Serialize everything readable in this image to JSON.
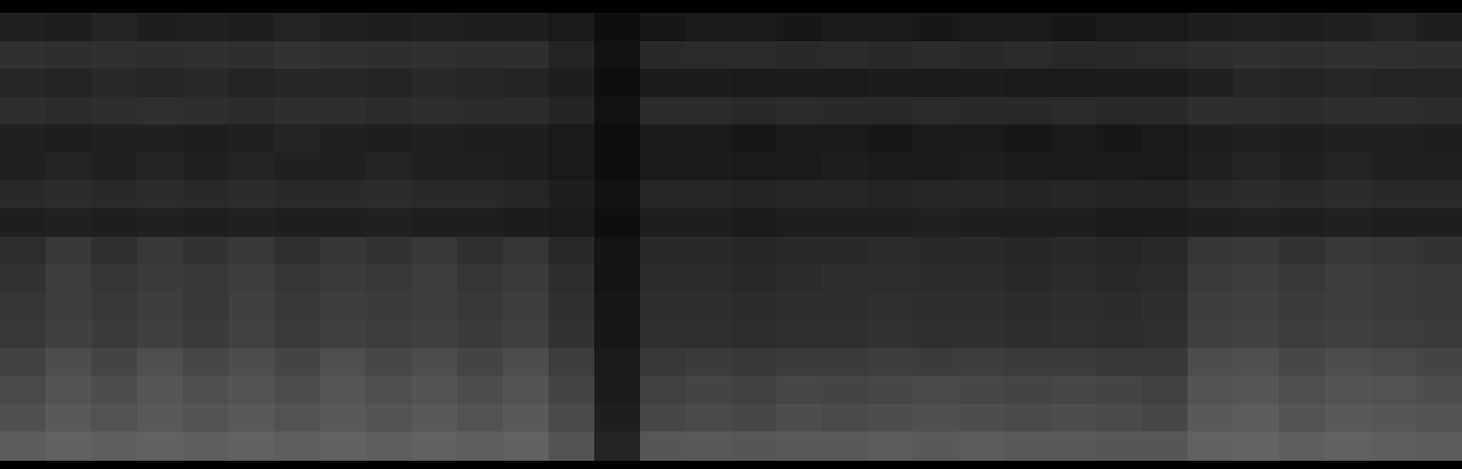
{
  "chart_data": {
    "type": "heatmap",
    "tick_labels": false,
    "grid": false,
    "zlim": [
      0,
      100
    ],
    "cells": [
      [
        13,
        12,
        14,
        12,
        13,
        12,
        14,
        13,
        12,
        13,
        12,
        12,
        10,
        6,
        9,
        10,
        10,
        9,
        10,
        10,
        9,
        10,
        10,
        9,
        10,
        10,
        12,
        13,
        12,
        13,
        14,
        12
      ],
      [
        19,
        18,
        19,
        18,
        19,
        18,
        20,
        19,
        18,
        19,
        18,
        18,
        14,
        7,
        16,
        17,
        17,
        16,
        17,
        16,
        17,
        16,
        17,
        16,
        16,
        17,
        18,
        19,
        18,
        19,
        19,
        18
      ],
      [
        15,
        14,
        16,
        15,
        16,
        14,
        15,
        15,
        14,
        16,
        15,
        14,
        12,
        6,
        11,
        11,
        10,
        11,
        10,
        11,
        10,
        11,
        10,
        10,
        11,
        11,
        13,
        15,
        14,
        15,
        14,
        14
      ],
      [
        18,
        17,
        18,
        19,
        18,
        17,
        18,
        18,
        17,
        18,
        17,
        17,
        14,
        7,
        17,
        17,
        16,
        17,
        16,
        16,
        17,
        16,
        16,
        17,
        16,
        16,
        18,
        18,
        17,
        18,
        18,
        17
      ],
      [
        13,
        12,
        13,
        13,
        12,
        13,
        14,
        13,
        12,
        13,
        12,
        12,
        10,
        6,
        10,
        10,
        9,
        10,
        10,
        9,
        10,
        10,
        9,
        10,
        9,
        10,
        12,
        13,
        12,
        13,
        13,
        12
      ],
      [
        13,
        14,
        13,
        14,
        13,
        14,
        13,
        13,
        14,
        13,
        13,
        12,
        10,
        6,
        11,
        11,
        10,
        11,
        12,
        11,
        11,
        12,
        11,
        11,
        11,
        10,
        13,
        14,
        13,
        14,
        13,
        13
      ],
      [
        16,
        17,
        16,
        17,
        16,
        17,
        16,
        16,
        17,
        16,
        16,
        15,
        12,
        7,
        15,
        15,
        14,
        15,
        15,
        14,
        15,
        15,
        14,
        15,
        14,
        14,
        16,
        17,
        16,
        17,
        16,
        16
      ],
      [
        12,
        13,
        12,
        13,
        12,
        13,
        12,
        12,
        13,
        12,
        12,
        11,
        10,
        6,
        12,
        12,
        11,
        12,
        12,
        12,
        13,
        12,
        12,
        12,
        11,
        11,
        12,
        13,
        12,
        13,
        12,
        12
      ],
      [
        18,
        22,
        19,
        22,
        20,
        22,
        19,
        21,
        20,
        22,
        19,
        21,
        16,
        8,
        16,
        16,
        15,
        16,
        16,
        17,
        16,
        16,
        15,
        16,
        15,
        16,
        21,
        22,
        20,
        22,
        21,
        20
      ],
      [
        20,
        24,
        21,
        23,
        22,
        24,
        21,
        23,
        22,
        24,
        21,
        23,
        18,
        8,
        17,
        17,
        16,
        17,
        18,
        18,
        17,
        17,
        16,
        17,
        16,
        17,
        23,
        24,
        22,
        24,
        23,
        22
      ],
      [
        21,
        24,
        22,
        24,
        22,
        25,
        22,
        24,
        23,
        24,
        22,
        24,
        19,
        9,
        18,
        18,
        17,
        18,
        18,
        19,
        18,
        18,
        17,
        18,
        17,
        18,
        24,
        25,
        23,
        24,
        23,
        22
      ],
      [
        22,
        25,
        23,
        25,
        23,
        26,
        23,
        25,
        24,
        25,
        23,
        25,
        20,
        9,
        19,
        19,
        18,
        19,
        19,
        20,
        19,
        19,
        18,
        19,
        18,
        19,
        25,
        26,
        24,
        25,
        24,
        23
      ],
      [
        26,
        30,
        27,
        31,
        28,
        30,
        27,
        31,
        28,
        30,
        27,
        30,
        24,
        10,
        22,
        23,
        22,
        23,
        23,
        24,
        23,
        24,
        23,
        23,
        22,
        22,
        30,
        31,
        28,
        30,
        29,
        27
      ],
      [
        29,
        33,
        30,
        34,
        31,
        33,
        30,
        34,
        31,
        33,
        30,
        33,
        27,
        11,
        26,
        27,
        26,
        28,
        27,
        28,
        29,
        28,
        27,
        28,
        27,
        26,
        33,
        34,
        31,
        33,
        32,
        30
      ],
      [
        31,
        35,
        32,
        35,
        33,
        35,
        32,
        35,
        33,
        35,
        32,
        35,
        29,
        12,
        28,
        29,
        28,
        30,
        29,
        30,
        31,
        30,
        29,
        30,
        29,
        28,
        35,
        36,
        33,
        35,
        34,
        32
      ],
      [
        36,
        38,
        37,
        38,
        37,
        38,
        37,
        38,
        37,
        38,
        37,
        38,
        33,
        14,
        34,
        35,
        34,
        35,
        35,
        36,
        35,
        36,
        35,
        35,
        34,
        34,
        38,
        39,
        37,
        38,
        37,
        36
      ]
    ]
  }
}
